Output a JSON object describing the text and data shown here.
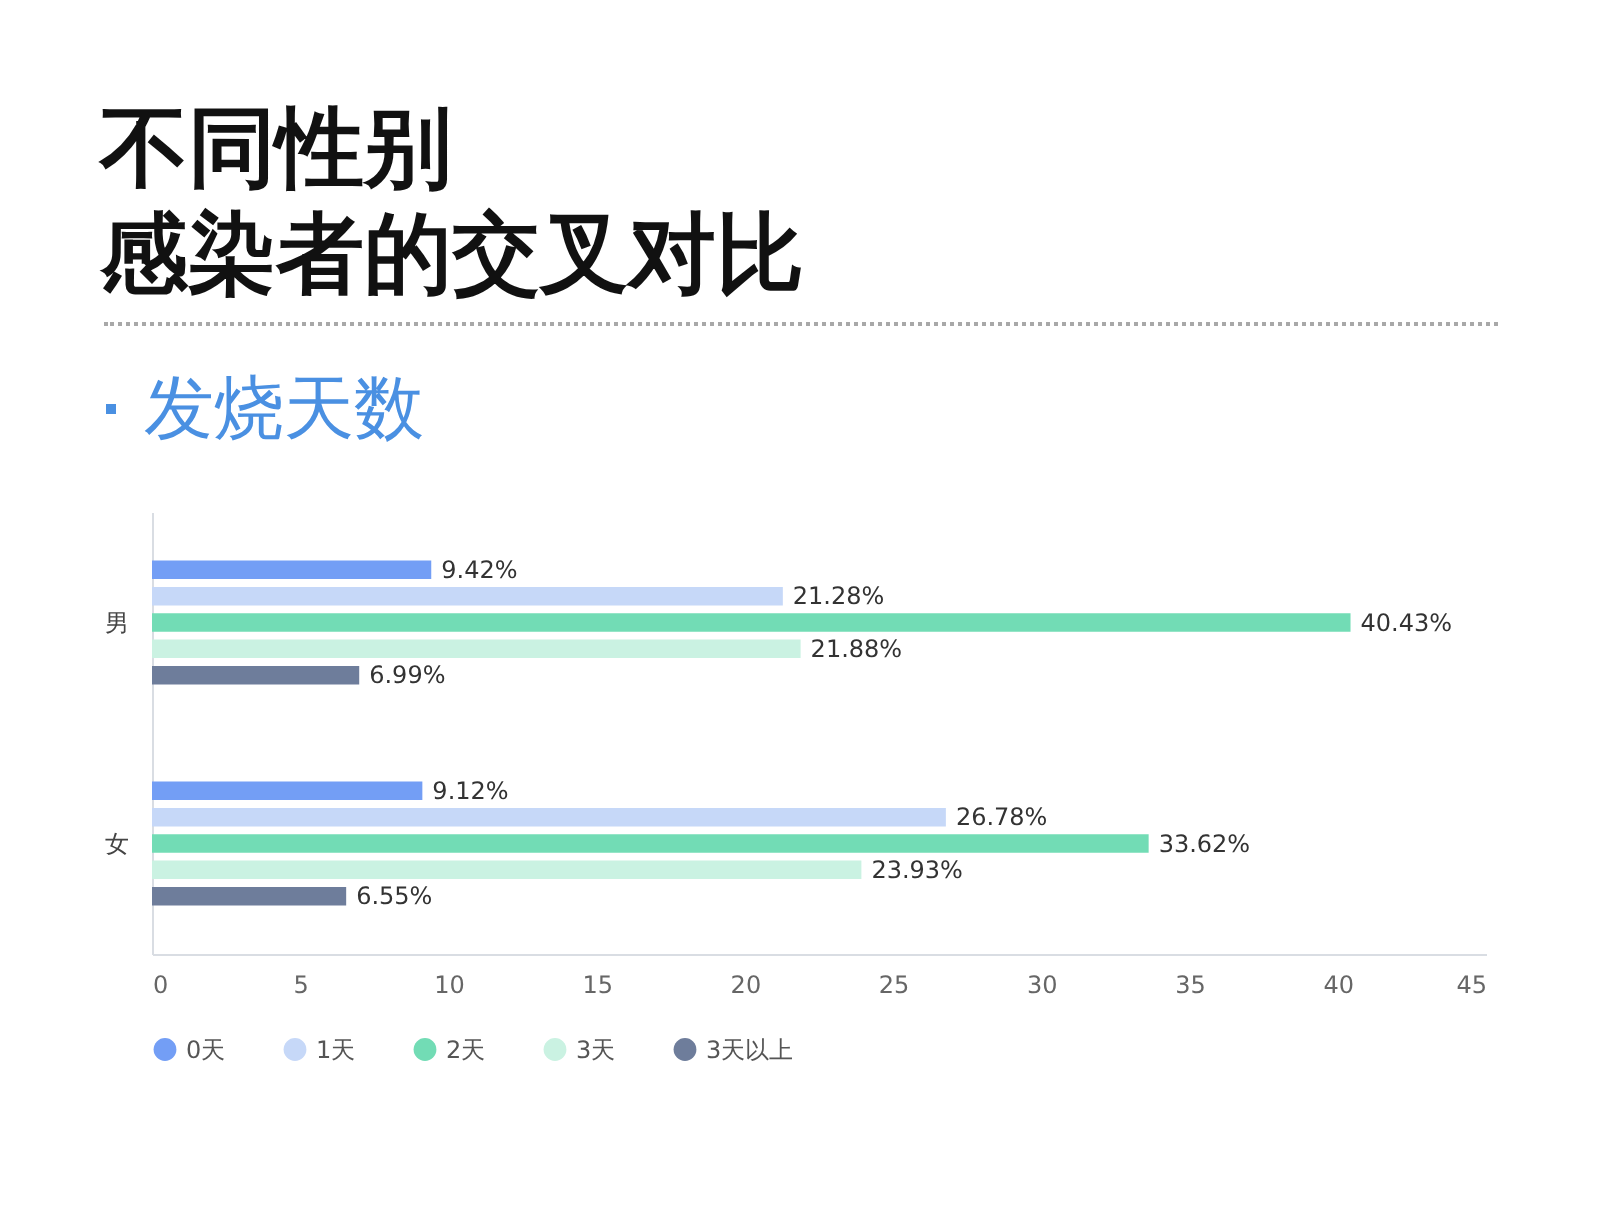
{
  "chart_data": {
    "type": "bar",
    "orientation": "horizontal",
    "title": "不同性别感染者的交叉对比",
    "subtitle": "发烧天数",
    "categories": [
      "男",
      "女"
    ],
    "series": [
      {
        "name": "0天",
        "color": "#739ef5",
        "values": [
          9.42,
          9.12
        ],
        "value_labels": [
          "9.42%",
          "9.12%"
        ]
      },
      {
        "name": "1天",
        "color": "#c6d8f8",
        "values": [
          21.28,
          26.78
        ],
        "value_labels": [
          "21.28%",
          "26.78%"
        ]
      },
      {
        "name": "2天",
        "color": "#72dcb5",
        "values": [
          40.43,
          33.62
        ],
        "value_labels": [
          "40.43%",
          "33.62%"
        ]
      },
      {
        "name": "3天",
        "color": "#caf2e2",
        "values": [
          21.88,
          23.93
        ],
        "value_labels": [
          "21.88%",
          "23.93%"
        ]
      },
      {
        "name": "3天以上",
        "color": "#6e7d9b",
        "values": [
          6.99,
          6.55
        ],
        "value_labels": [
          "6.99%",
          "6.55%"
        ]
      }
    ],
    "xlim": [
      0,
      45
    ],
    "xticks": [
      0,
      5,
      10,
      15,
      20,
      25,
      30,
      35,
      40,
      45
    ],
    "legend": "bottom"
  }
}
